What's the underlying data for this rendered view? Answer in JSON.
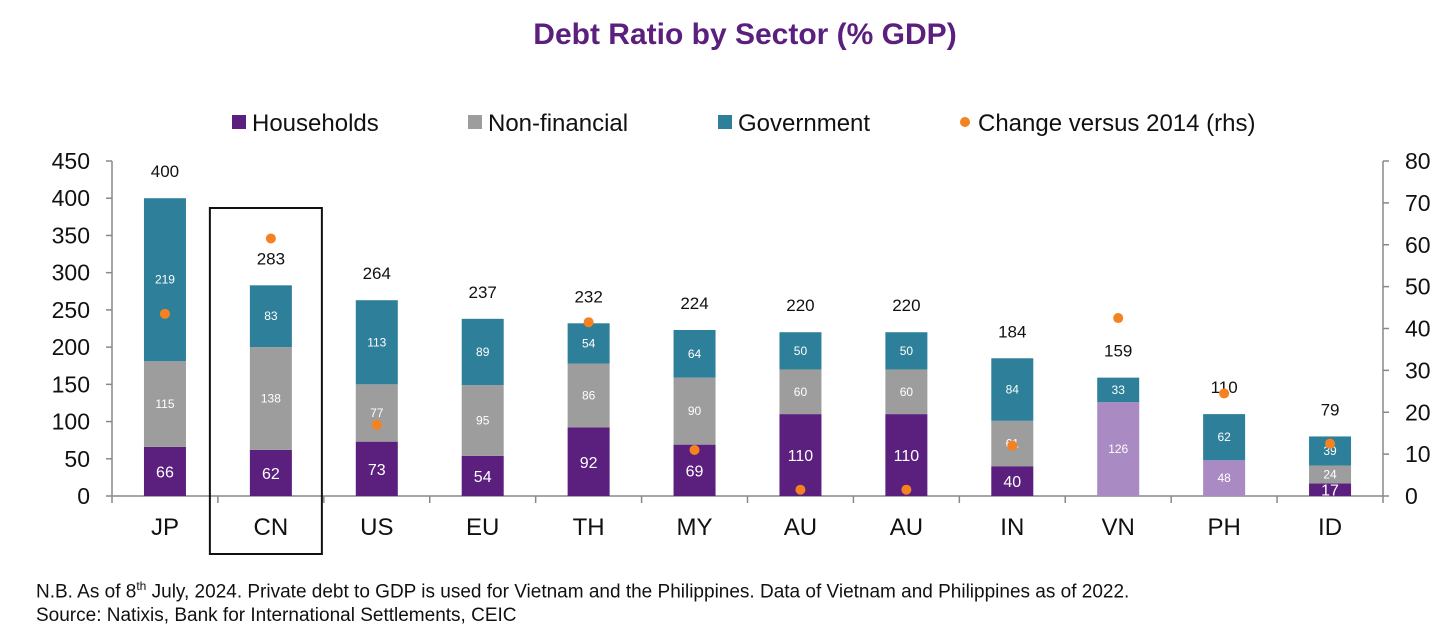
{
  "chart_data": {
    "type": "bar",
    "stacked": true,
    "title": "Debt Ratio by Sector (% GDP)",
    "categories": [
      "JP",
      "CN",
      "US",
      "EU",
      "TH",
      "MY",
      "AU",
      "AU",
      "IN",
      "VN",
      "PH",
      "ID"
    ],
    "series": [
      {
        "name": "Households",
        "color": "#5b1f7e",
        "values": [
          66,
          62,
          73,
          54,
          92,
          69,
          110,
          110,
          40,
          null,
          null,
          17
        ]
      },
      {
        "name": "Non-financial",
        "color": "#9d9d9d",
        "values": [
          115,
          138,
          77,
          95,
          86,
          90,
          60,
          60,
          61,
          126,
          48,
          24
        ]
      },
      {
        "name": "Government",
        "color": "#2e7f99",
        "values": [
          219,
          83,
          113,
          89,
          54,
          64,
          50,
          50,
          84,
          33,
          62,
          39
        ]
      }
    ],
    "private_debt_color": "#a98ac2",
    "private_debt_categories": [
      "VN",
      "PH"
    ],
    "totals": [
      400,
      283,
      264,
      237,
      232,
      224,
      220,
      220,
      184,
      159,
      110,
      79
    ],
    "change_series": {
      "name": "Change versus 2014 (rhs)",
      "color": "#f58220",
      "values": [
        43.5,
        61.5,
        17,
        null,
        41.5,
        11,
        1.5,
        1.5,
        12,
        42.5,
        24.5,
        12.5
      ]
    },
    "y_left": {
      "min": 0,
      "max": 450,
      "ticks": [
        0,
        50,
        100,
        150,
        200,
        250,
        300,
        350,
        400,
        450
      ]
    },
    "y_right": {
      "min": 0,
      "max": 80,
      "ticks": [
        0,
        10,
        20,
        30,
        40,
        50,
        60,
        70,
        80
      ]
    },
    "highlight_category": "CN",
    "legend_position": "top",
    "grid": false
  },
  "footnote": {
    "line1_prefix": "N.B. As of 8",
    "line1_sup": "th",
    "line1_suffix": " July, 2024. Private debt to GDP is used for Vietnam and the Philippines. Data of Vietnam and Philippines as of 2022.",
    "line2": "Source: Natixis,  Bank for International Settlements,  CEIC"
  }
}
